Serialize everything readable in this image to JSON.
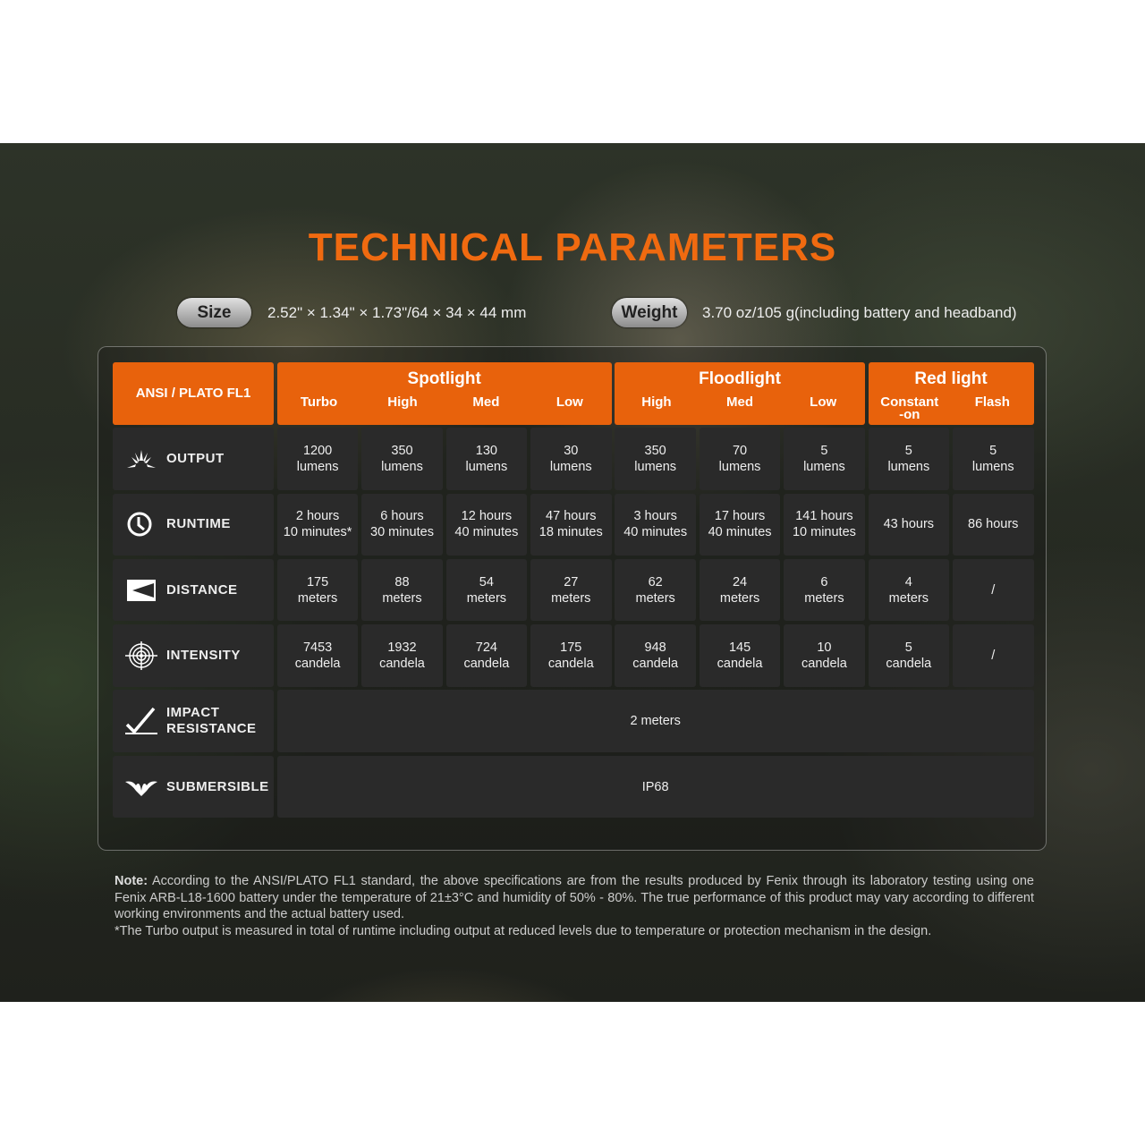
{
  "title": "TECHNICAL PARAMETERS",
  "size": {
    "label": "Size",
    "value": "2.52\" × 1.34\" × 1.73\"/64 × 34 × 44 mm"
  },
  "weight": {
    "label": "Weight",
    "value": "3.70 oz/105 g(including battery and headband)"
  },
  "colors": {
    "accent": "#e8620c",
    "title": "#f06a10",
    "cell": "#2a2a2a"
  },
  "table": {
    "corner": "ANSI / PLATO FL1",
    "groups": [
      {
        "title": "Spotlight",
        "modes": [
          "Turbo",
          "High",
          "Med",
          "Low"
        ]
      },
      {
        "title": "Floodlight",
        "modes": [
          "High",
          "Med",
          "Low"
        ]
      },
      {
        "title": "Red light",
        "modes": [
          "Constant\n-on",
          "Flash"
        ]
      }
    ],
    "rows": [
      {
        "label": "OUTPUT",
        "icon": "sunburst-icon",
        "values": [
          "1200\nlumens",
          "350\nlumens",
          "130\nlumens",
          "30\nlumens",
          "350\nlumens",
          "70\nlumens",
          "5\nlumens",
          "5\nlumens",
          "5\nlumens"
        ]
      },
      {
        "label": "RUNTIME",
        "icon": "clock-icon",
        "values": [
          "2 hours\n10 minutes*",
          "6 hours\n30 minutes",
          "12 hours\n40 minutes",
          "47 hours\n18 minutes",
          "3 hours\n40 minutes",
          "17 hours\n40 minutes",
          "141 hours\n10 minutes",
          "43 hours",
          "86 hours"
        ]
      },
      {
        "label": "DISTANCE",
        "icon": "beam-distance-icon",
        "values": [
          "175\nmeters",
          "88\nmeters",
          "54\nmeters",
          "27\nmeters",
          "62\nmeters",
          "24\nmeters",
          "6\nmeters",
          "4\nmeters",
          "/"
        ]
      },
      {
        "label": "INTENSITY",
        "icon": "target-icon",
        "values": [
          "7453\ncandela",
          "1932\ncandela",
          "724\ncandela",
          "175\ncandela",
          "948\ncandela",
          "145\ncandela",
          "10\ncandela",
          "5\ncandela",
          "/"
        ]
      },
      {
        "label": "IMPACT\nRESISTANCE",
        "icon": "impact-check-icon",
        "span": "2 meters"
      },
      {
        "label": "SUBMERSIBLE",
        "icon": "water-splash-icon",
        "span": "IP68"
      }
    ]
  },
  "note": {
    "bold": "Note:",
    "text": " According to the ANSI/PLATO FL1 standard, the above specifications are from the results produced by Fenix through its laboratory testing using one Fenix ARB-L18-1600 battery under the temperature of 21±3°C and humidity of 50% - 80%. The true performance of this product may vary according to different working environments and the actual battery used.",
    "footnote": "*The Turbo output is measured in total of runtime including output at reduced levels due to temperature or protection mechanism in the design."
  }
}
